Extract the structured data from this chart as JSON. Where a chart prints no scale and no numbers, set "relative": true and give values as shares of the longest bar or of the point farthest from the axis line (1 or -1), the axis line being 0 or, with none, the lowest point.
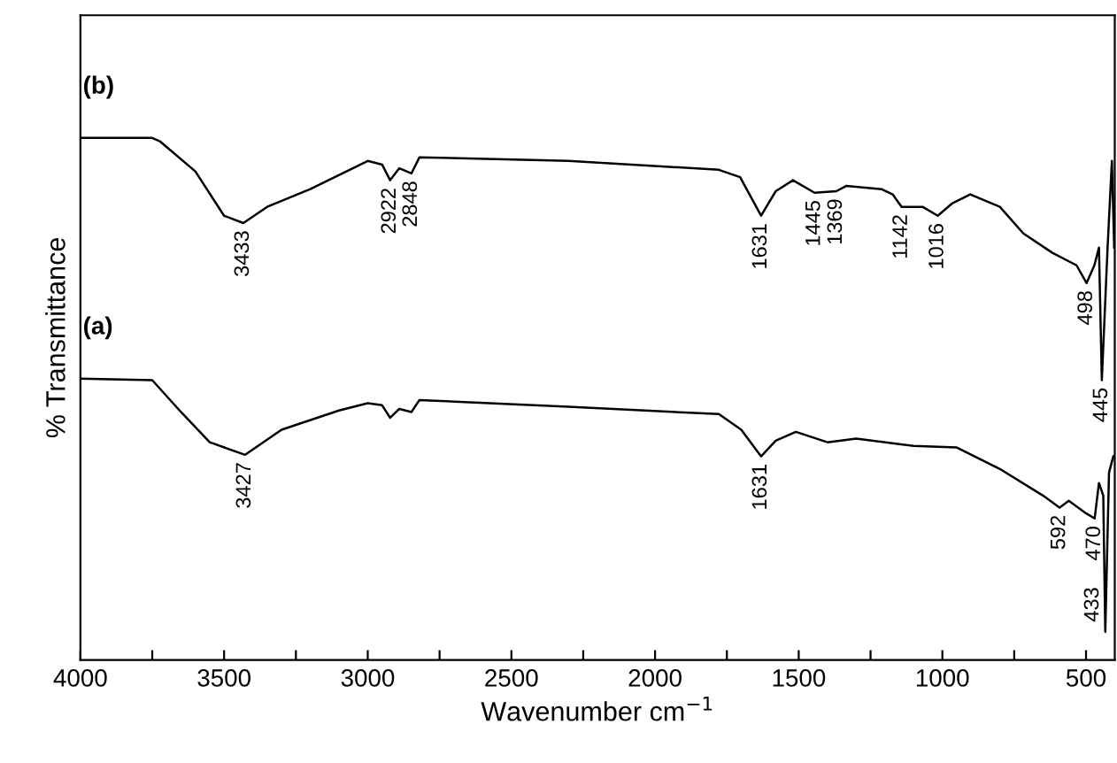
{
  "chart_data": {
    "type": "line",
    "relative": true,
    "xlabel": "Wavenumber cm$^{−1}$",
    "ylabel": "% Transmittance",
    "xlim": [
      4000,
      400
    ],
    "xticks": [
      4000,
      {
        "value": 3750,
        "label": null
      },
      3500,
      {
        "value": 3250,
        "label": null
      },
      3000,
      {
        "value": 2750,
        "label": null
      },
      2500,
      {
        "value": 2250,
        "label": null
      },
      2000,
      {
        "value": 1750,
        "label": null
      },
      1500,
      {
        "value": 1250,
        "label": null
      },
      1000,
      {
        "value": 750,
        "label": null
      },
      500
    ],
    "grid": false,
    "legend": false,
    "marker": "none",
    "line_style": "solid",
    "series": [
      {
        "name": "(b)",
        "color": "#000000",
        "x": [
          4000,
          3750,
          3722,
          3600,
          3500,
          3433,
          3350,
          3200,
          3000,
          2950,
          2922,
          2890,
          2848,
          2820,
          2302,
          1778,
          1704,
          1631,
          1580,
          1520,
          1445,
          1369,
          1335,
          1212,
          1173,
          1142,
          1069,
          1016,
          965,
          903,
          800,
          718,
          617,
          533,
          498,
          471,
          455,
          445,
          425,
          410,
          402
        ],
        "values": [
          1.0,
          1.0,
          0.993,
          0.936,
          0.851,
          0.837,
          0.868,
          0.902,
          0.956,
          0.949,
          0.919,
          0.942,
          0.932,
          0.963,
          0.956,
          0.939,
          0.925,
          0.851,
          0.898,
          0.919,
          0.895,
          0.898,
          0.908,
          0.902,
          0.892,
          0.868,
          0.868,
          0.851,
          0.875,
          0.892,
          0.868,
          0.817,
          0.78,
          0.756,
          0.722,
          0.756,
          0.79,
          0.536,
          0.79,
          0.956,
          0.79
        ]
      },
      {
        "name": "(a)",
        "color": "#000000",
        "x": [
          4000,
          3750,
          3650,
          3550,
          3427,
          3300,
          3100,
          3000,
          2950,
          2922,
          2890,
          2848,
          2820,
          2302,
          1778,
          1700,
          1631,
          1580,
          1510,
          1400,
          1300,
          1100,
          950,
          800,
          650,
          592,
          560,
          500,
          470,
          455,
          440,
          433,
          420,
          405
        ],
        "values": [
          0.539,
          0.536,
          0.475,
          0.417,
          0.393,
          0.441,
          0.478,
          0.492,
          0.488,
          0.464,
          0.481,
          0.475,
          0.498,
          0.485,
          0.471,
          0.441,
          0.39,
          0.42,
          0.437,
          0.417,
          0.424,
          0.41,
          0.407,
          0.366,
          0.315,
          0.292,
          0.305,
          0.281,
          0.271,
          0.339,
          0.315,
          0.054,
          0.359,
          0.39
        ]
      }
    ],
    "annotations": [
      {
        "text": "3433",
        "x": 3433,
        "y": 0.837
      },
      {
        "text": "2922",
        "x": 2922,
        "y": 0.919
      },
      {
        "text": "2848",
        "x": 2848,
        "y": 0.932
      },
      {
        "text": "1631",
        "x": 1631,
        "y": 0.851
      },
      {
        "text": "1445",
        "x": 1445,
        "y": 0.895
      },
      {
        "text": "1369",
        "x": 1369,
        "y": 0.898
      },
      {
        "text": "1142",
        "x": 1142,
        "y": 0.868
      },
      {
        "text": "1016",
        "x": 1016,
        "y": 0.851
      },
      {
        "text": "498",
        "x": 498,
        "y": 0.722
      },
      {
        "text": "445",
        "x": 445,
        "y": 0.536
      },
      {
        "text": "3427",
        "x": 3427,
        "y": 0.393
      },
      {
        "text": "1631",
        "x": 1631,
        "y": 0.39
      },
      {
        "text": "592",
        "x": 592,
        "y": 0.292
      },
      {
        "text": "470",
        "x": 470,
        "y": 0.271
      },
      {
        "text": "433",
        "x": 433,
        "y": 0.054
      }
    ]
  }
}
